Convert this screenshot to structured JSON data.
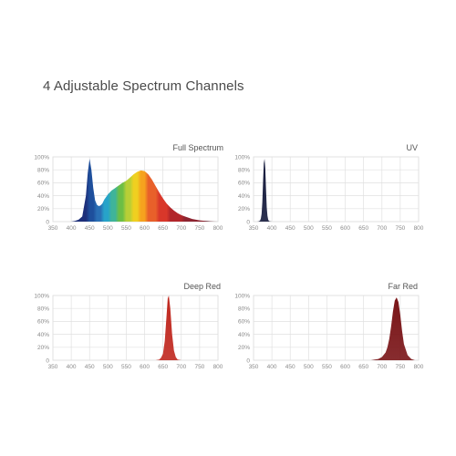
{
  "title": "4 Adjustable Spectrum Channels",
  "chart_data": [
    {
      "type": "area",
      "title": "Full Spectrum",
      "xlim": [
        350,
        800
      ],
      "ylim": [
        0,
        100
      ],
      "x_ticks": [
        "350",
        "400",
        "450",
        "500",
        "550",
        "600",
        "650",
        "700",
        "750",
        "800"
      ],
      "y_ticks": [
        "0",
        "20%",
        "40%",
        "60%",
        "80%",
        "100%"
      ],
      "grid": true,
      "fill": "spectral-gradient",
      "x": [
        400,
        410,
        420,
        430,
        440,
        445,
        450,
        455,
        460,
        465,
        470,
        475,
        480,
        485,
        490,
        500,
        510,
        520,
        530,
        540,
        550,
        560,
        570,
        580,
        590,
        600,
        610,
        620,
        630,
        640,
        650,
        660,
        670,
        680,
        690,
        700,
        710,
        720,
        730,
        740,
        750,
        760,
        770,
        780,
        790,
        800
      ],
      "y": [
        0,
        1,
        3,
        8,
        40,
        75,
        97,
        80,
        52,
        33,
        26,
        24,
        25,
        28,
        34,
        42,
        48,
        52,
        56,
        60,
        63,
        68,
        73,
        77,
        79,
        78,
        73,
        65,
        55,
        45,
        36,
        28,
        22,
        17,
        13,
        10,
        8,
        6,
        4,
        3,
        2,
        1.5,
        1,
        0.5,
        0.2,
        0
      ]
    },
    {
      "type": "area",
      "title": "UV",
      "xlim": [
        350,
        800
      ],
      "ylim": [
        0,
        100
      ],
      "x_ticks": [
        "350",
        "400",
        "450",
        "500",
        "550",
        "600",
        "650",
        "700",
        "750",
        "800"
      ],
      "y_ticks": [
        "0",
        "20%",
        "40%",
        "60%",
        "80%",
        "100%"
      ],
      "grid": true,
      "color": "#151a3c",
      "x": [
        360,
        365,
        368,
        370,
        372,
        374,
        376,
        378,
        380,
        382,
        384,
        386,
        388,
        390,
        392,
        395,
        400
      ],
      "y": [
        0,
        0.5,
        2,
        5,
        12,
        30,
        62,
        90,
        97,
        82,
        50,
        22,
        9,
        3,
        1,
        0.3,
        0
      ]
    },
    {
      "type": "area",
      "title": "Deep Red",
      "xlim": [
        350,
        800
      ],
      "ylim": [
        0,
        100
      ],
      "x_ticks": [
        "350",
        "400",
        "450",
        "500",
        "550",
        "600",
        "650",
        "700",
        "750",
        "800"
      ],
      "y_ticks": [
        "0",
        "20%",
        "40%",
        "60%",
        "80%",
        "100%"
      ],
      "grid": true,
      "color": "#c0281f",
      "x": [
        630,
        640,
        645,
        650,
        655,
        660,
        663,
        666,
        670,
        675,
        680,
        685,
        690,
        700
      ],
      "y": [
        0,
        1,
        4,
        10,
        30,
        70,
        95,
        100,
        80,
        40,
        15,
        5,
        1,
        0
      ]
    },
    {
      "type": "area",
      "title": "Far Red",
      "xlim": [
        350,
        800
      ],
      "ylim": [
        0,
        100
      ],
      "x_ticks": [
        "350",
        "400",
        "450",
        "500",
        "550",
        "600",
        "650",
        "700",
        "750",
        "800"
      ],
      "y_ticks": [
        "0",
        "20%",
        "40%",
        "60%",
        "80%",
        "100%"
      ],
      "grid": true,
      "color": "#7a1518",
      "x": [
        670,
        680,
        690,
        700,
        710,
        715,
        720,
        725,
        730,
        735,
        740,
        745,
        750,
        755,
        760,
        770,
        780,
        790
      ],
      "y": [
        0,
        1,
        2,
        5,
        12,
        20,
        33,
        52,
        75,
        92,
        97,
        90,
        70,
        45,
        25,
        8,
        2,
        0
      ]
    }
  ]
}
